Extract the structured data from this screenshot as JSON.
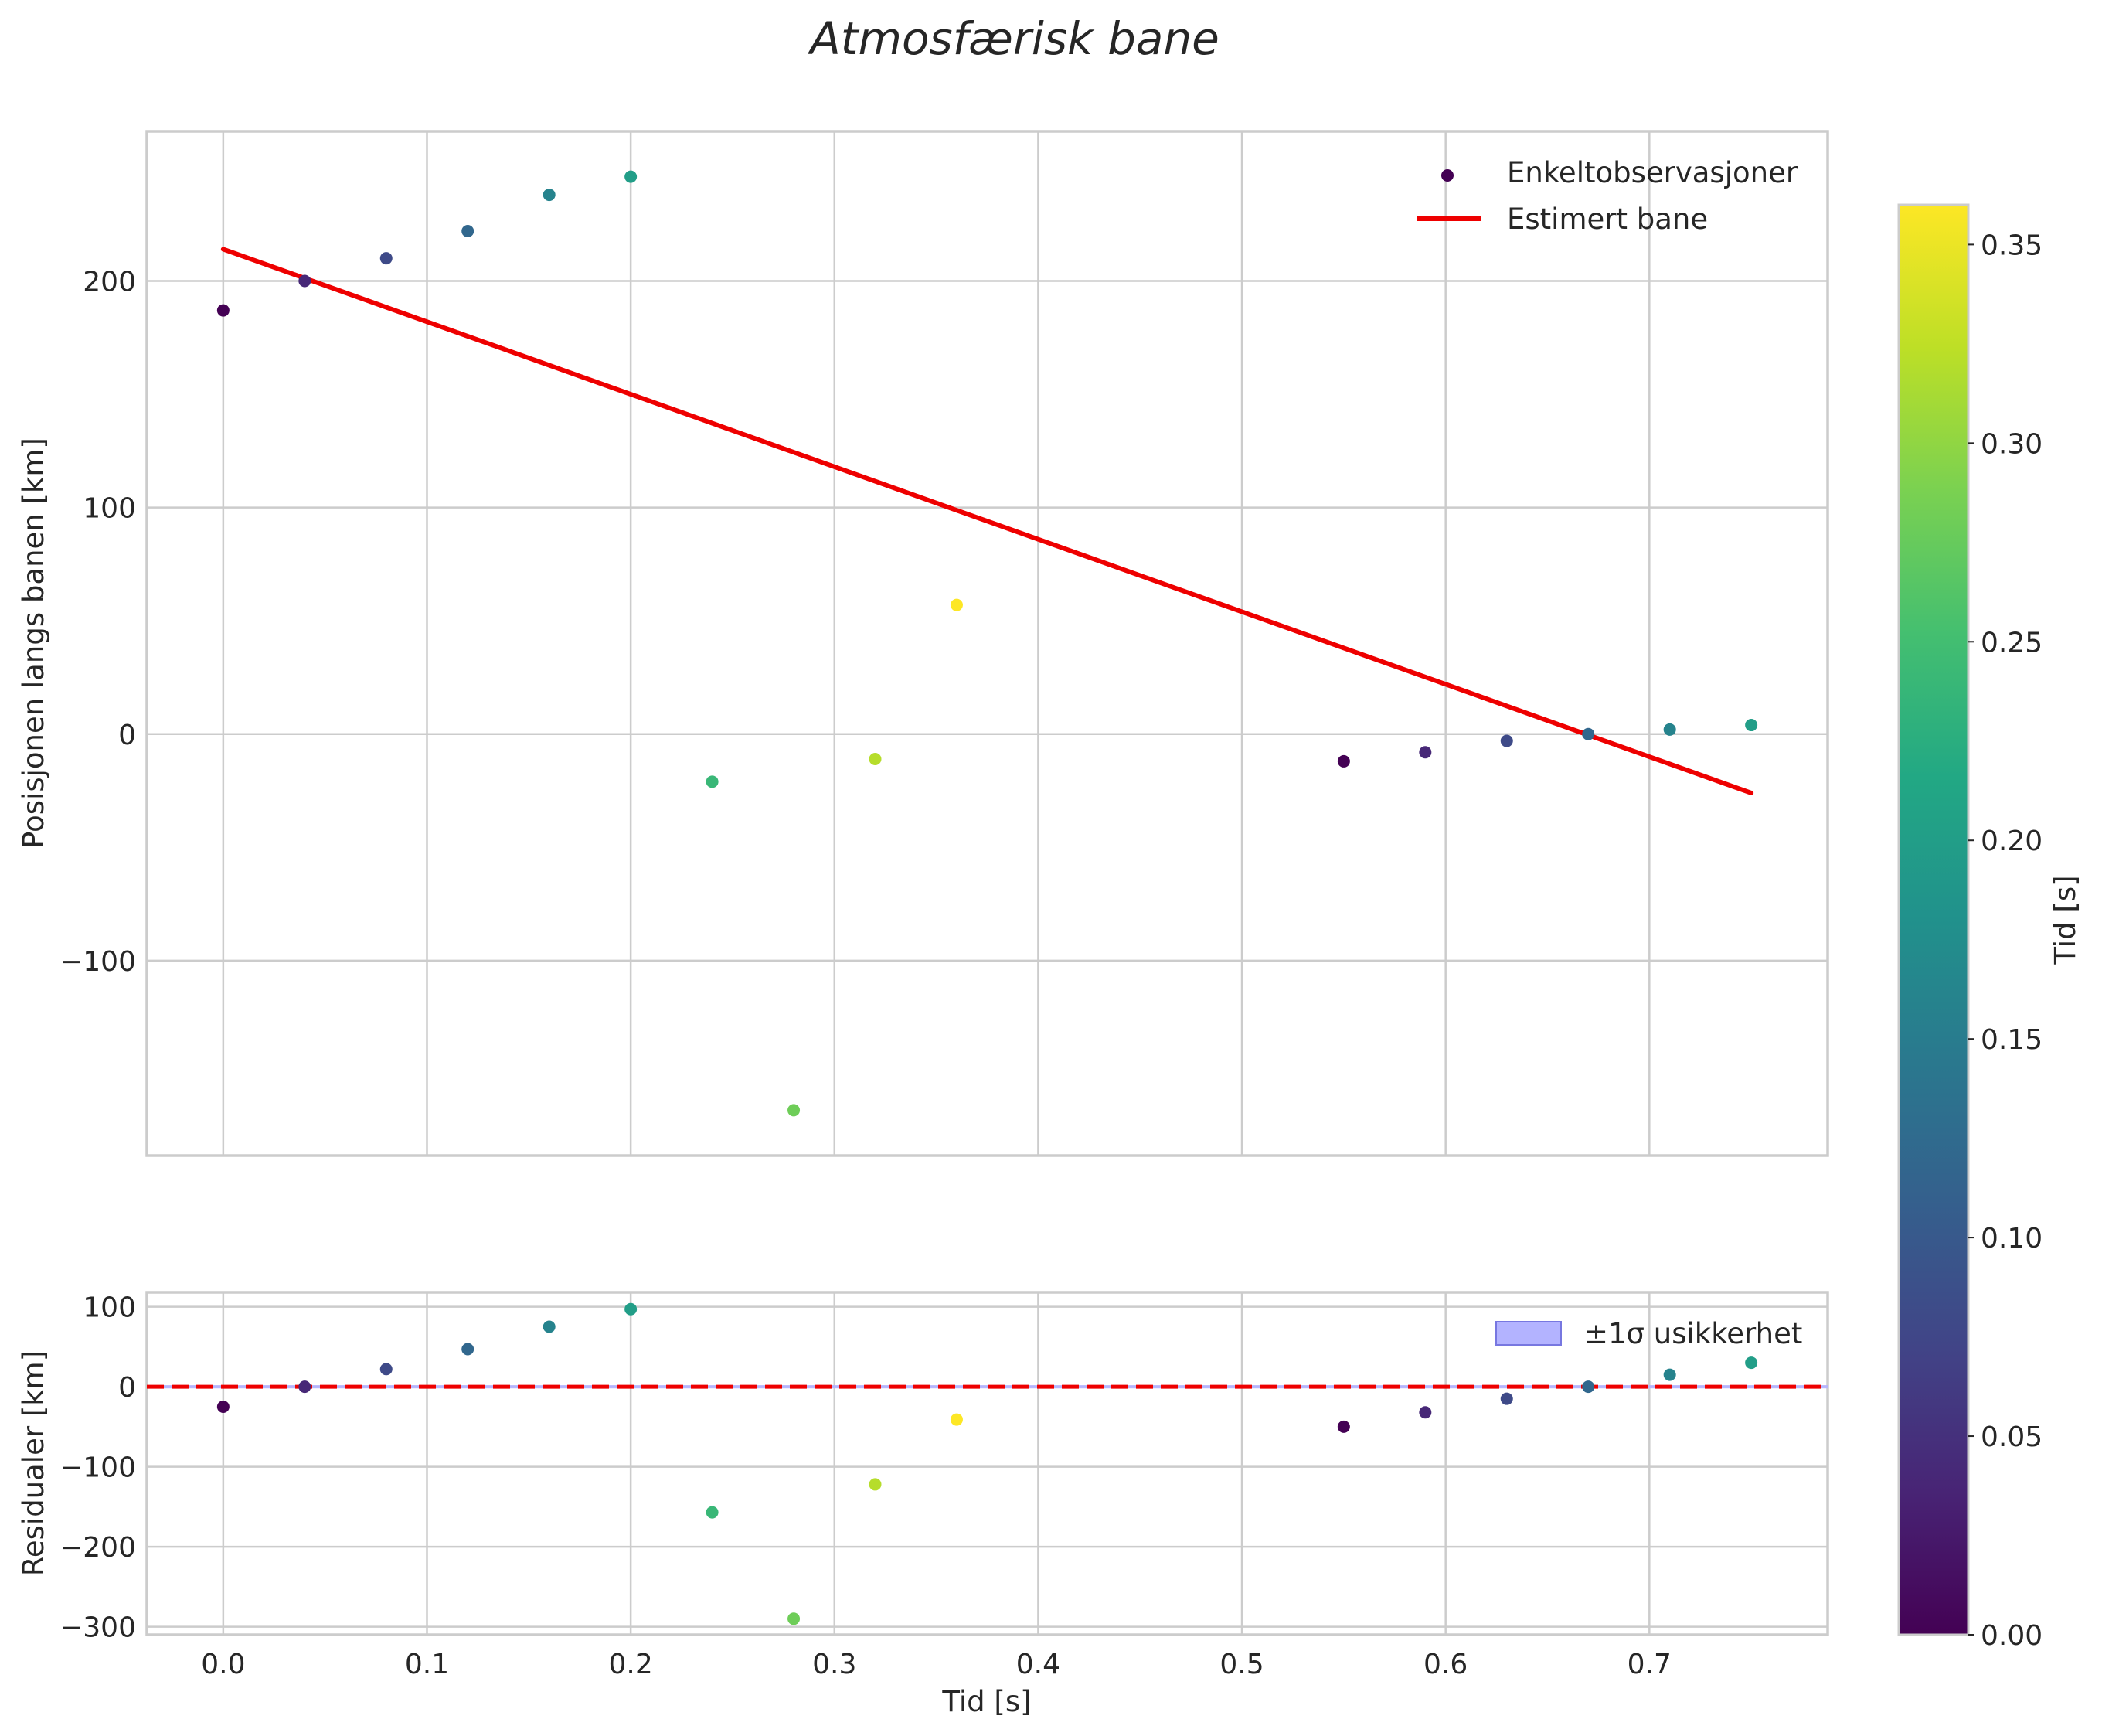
{
  "colors": {
    "fit_line": "#ee0000",
    "band_fill": "#b3b3ff",
    "band_edge": "#7777e0",
    "grid": "#cccccc",
    "text": "#262626"
  },
  "chart_data": {
    "type": "scatter",
    "title": "Atmosfærisk bane",
    "xlabel": "Tid [s]",
    "xlim": [
      -0.0375,
      0.7875
    ],
    "xticks": [
      0.0,
      0.1,
      0.2,
      0.3,
      0.4,
      0.5,
      0.6,
      0.7
    ],
    "xtick_labels": [
      "0.0",
      "0.1",
      "0.2",
      "0.3",
      "0.4",
      "0.5",
      "0.6",
      "0.7"
    ],
    "colorscale": "viridis",
    "panels": {
      "top": {
        "ylabel": "Posisjonen langs banen [km]",
        "ylim": [
          -186,
          266
        ],
        "yticks": [
          -100,
          0,
          100,
          200
        ],
        "ytick_labels": [
          "−100",
          "0",
          "100",
          "200"
        ],
        "legend": {
          "position": "top-right",
          "scatter_label": "Enkeltobservasjoner",
          "line_label": "Estimert bane"
        }
      },
      "bottom": {
        "ylabel": "Residualer [km]",
        "ylim": [
          -310,
          118
        ],
        "yticks": [
          -300,
          -200,
          -100,
          0,
          100
        ],
        "ytick_labels": [
          "−300",
          "−200",
          "−100",
          "0",
          "100"
        ],
        "legend": {
          "position": "top-right",
          "band_label": "±1σ usikkerhet"
        },
        "sigma_band": 2
      }
    },
    "observations": {
      "x": [
        0.0,
        0.04,
        0.08,
        0.12,
        0.16,
        0.2,
        0.24,
        0.28,
        0.32,
        0.36,
        0.55,
        0.59,
        0.63,
        0.67,
        0.71,
        0.75
      ],
      "y": [
        187,
        200,
        210,
        222,
        238,
        246,
        -21,
        -166,
        -11,
        57,
        -12,
        -8,
        -3,
        0,
        2,
        4
      ],
      "color_value": [
        0.0,
        0.04,
        0.08,
        0.12,
        0.16,
        0.2,
        0.24,
        0.28,
        0.32,
        0.36,
        0.0,
        0.04,
        0.08,
        0.12,
        0.16,
        0.2
      ],
      "residuals": [
        -25,
        0,
        22,
        47,
        75,
        97,
        -157,
        -290,
        -122,
        -41,
        -50,
        -32,
        -15,
        0,
        15,
        30
      ]
    },
    "fit_line": {
      "x": [
        0.0,
        0.75
      ],
      "y": [
        214,
        -26
      ]
    },
    "colorbar": {
      "label": "Tid [s]",
      "range": [
        0.0,
        0.36
      ],
      "ticks": [
        0.0,
        0.05,
        0.1,
        0.15,
        0.2,
        0.25,
        0.3,
        0.35
      ],
      "tick_labels": [
        "0.00",
        "0.05",
        "0.10",
        "0.15",
        "0.20",
        "0.25",
        "0.30",
        "0.35"
      ]
    }
  }
}
